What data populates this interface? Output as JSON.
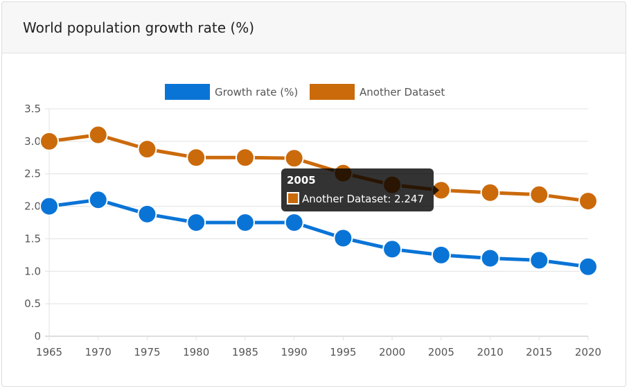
{
  "card": {
    "title": "World population growth rate (%)"
  },
  "chart_data": {
    "type": "line",
    "title": "",
    "xlabel": "",
    "ylabel": "",
    "x": [
      "1965",
      "1970",
      "1975",
      "1980",
      "1985",
      "1990",
      "1995",
      "2000",
      "2005",
      "2010",
      "2015",
      "2020"
    ],
    "ylim": [
      0,
      3.5
    ],
    "yticks": [
      "0",
      "0.5",
      "1.0",
      "1.5",
      "2.0",
      "2.5",
      "3.0",
      "3.5"
    ],
    "grid": true,
    "legend_position": "top",
    "series": [
      {
        "name": "Growth rate (%)",
        "color": "#0a74d6",
        "values": [
          2.0,
          2.1,
          1.88,
          1.75,
          1.75,
          1.75,
          1.51,
          1.34,
          1.25,
          1.2,
          1.17,
          1.07
        ]
      },
      {
        "name": "Another Dataset",
        "color": "#cb6a0b",
        "values": [
          3.0,
          3.1,
          2.88,
          2.75,
          2.75,
          2.74,
          2.51,
          2.33,
          2.247,
          2.21,
          2.18,
          2.08
        ]
      }
    ],
    "tooltip": {
      "title": "2005",
      "label": "Another Dataset: 2.247",
      "series_index": 1,
      "point_index": 8
    }
  }
}
